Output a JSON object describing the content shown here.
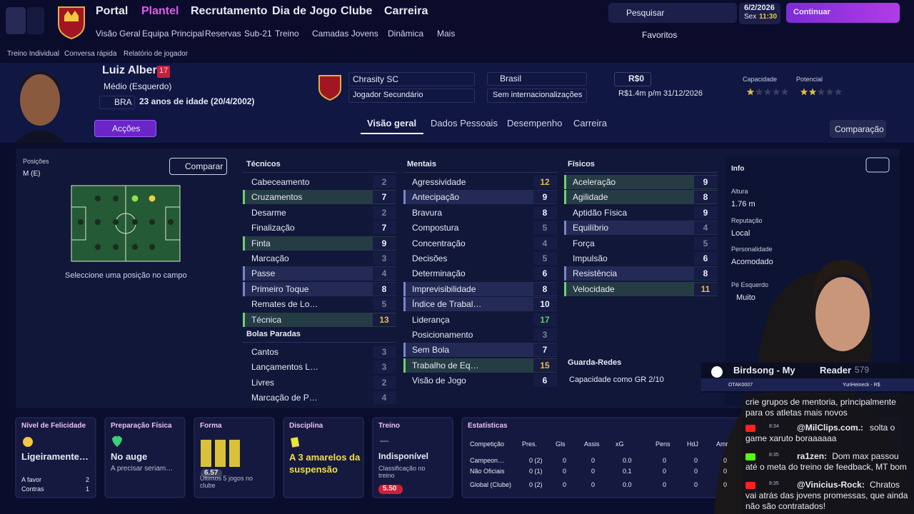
{
  "nav": {
    "menu": [
      "Portal",
      "Plantel",
      "Recrutamento",
      "Dia de Jogo",
      "Clube",
      "Carreira"
    ],
    "submenu": [
      "Visão Geral",
      "Equipa Principal",
      "Reservas",
      "Sub-21",
      "Treino",
      "Camadas Jovens",
      "Dinâmica",
      "Mais"
    ],
    "search": "Pesquisar",
    "date": "6/2/2026",
    "day": "Sex",
    "time": "11:30",
    "continue": "Continuar",
    "favorites": "Favoritos"
  },
  "breadcrumb": [
    "Treino Individual",
    "Conversa rápida",
    "Relatório de jogador"
  ],
  "player": {
    "name": "Luiz Alberto",
    "number": 17,
    "position": "Médio (Esquerdo)",
    "nation": "BRA",
    "age": "23 anos de idade (20/4/2002)",
    "club": "Chrasity SC",
    "role": "Jogador Secundário",
    "country": "Brasil",
    "caps": "Sem internacionalizações",
    "value": "R$0",
    "wage": "R$1.4m p/m 31/12/2026",
    "ability_label": "Capacidade",
    "ability": 1,
    "potential_label": "Potencial",
    "potential": 2,
    "actions": "Acções"
  },
  "tabs": [
    "Visão geral",
    "Dados Pessoais",
    "Desempenho",
    "Carreira"
  ],
  "compare_button": "Comparação",
  "positions": {
    "label": "Posições",
    "value": "M (E)",
    "compare": "Comparar",
    "hint": "Seleccione uma posição no campo"
  },
  "attributes": [
    {
      "title": "Técnicos",
      "items": [
        {
          "name": "Cabeceamento",
          "value": 2
        },
        {
          "name": "Cruzamentos",
          "value": 7,
          "highlight": "primary"
        },
        {
          "name": "Desarme",
          "value": 2
        },
        {
          "name": "Finalização",
          "value": 7
        },
        {
          "name": "Finta",
          "value": 9,
          "highlight": "primary"
        },
        {
          "name": "Marcação",
          "value": 3
        },
        {
          "name": "Passe",
          "value": 4,
          "highlight": "secondary"
        },
        {
          "name": "Primeiro Toque",
          "value": 8,
          "highlight": "secondary"
        },
        {
          "name": "Remates de Lo…",
          "value": 5
        },
        {
          "name": "Técnica",
          "value": 13,
          "highlight": "primary"
        }
      ]
    },
    {
      "title": "Mentais",
      "items": [
        {
          "name": "Agressividade",
          "value": 12
        },
        {
          "name": "Antecipação",
          "value": 9,
          "highlight": "secondary"
        },
        {
          "name": "Bravura",
          "value": 8
        },
        {
          "name": "Compostura",
          "value": 5
        },
        {
          "name": "Concentração",
          "value": 4
        },
        {
          "name": "Decisões",
          "value": 5
        },
        {
          "name": "Determinação",
          "value": 6
        },
        {
          "name": "Imprevisibilidade",
          "value": 8,
          "highlight": "secondary"
        },
        {
          "name": "Índice de Trabal…",
          "value": 10,
          "highlight": "secondary"
        },
        {
          "name": "Liderança",
          "value": 17
        },
        {
          "name": "Posicionamento",
          "value": 3
        },
        {
          "name": "Sem Bola",
          "value": 7,
          "highlight": "secondary"
        },
        {
          "name": "Trabalho de Eq…",
          "value": 15,
          "highlight": "primary"
        },
        {
          "name": "Visão de Jogo",
          "value": 6
        }
      ]
    },
    {
      "title": "Físicos",
      "items": [
        {
          "name": "Aceleração",
          "value": 9,
          "highlight": "primary"
        },
        {
          "name": "Agilidade",
          "value": 8,
          "highlight": "primary"
        },
        {
          "name": "Aptidão Física",
          "value": 9
        },
        {
          "name": "Equilíbrio",
          "value": 4,
          "highlight": "secondary"
        },
        {
          "name": "Força",
          "value": 5
        },
        {
          "name": "Impulsão",
          "value": 6
        },
        {
          "name": "Resistência",
          "value": 8,
          "highlight": "secondary"
        },
        {
          "name": "Velocidade",
          "value": 11,
          "highlight": "primary"
        }
      ]
    },
    {
      "title": "Bolas Paradas",
      "items": [
        {
          "name": "Cantos",
          "value": 3
        },
        {
          "name": "Lançamentos L…",
          "value": 3
        },
        {
          "name": "Livres",
          "value": 2
        },
        {
          "name": "Marcação de P…",
          "value": 4
        }
      ]
    }
  ],
  "goalkeeping": {
    "title": "Guarda-Redes",
    "text": "Capacidade como GR 2/10"
  },
  "info": {
    "title": "Info",
    "fields": [
      {
        "label": "Altura",
        "value": "1.76 m"
      },
      {
        "label": "Reputação",
        "value": "Local"
      },
      {
        "label": "Personalidade",
        "value": "Acomodado"
      },
      {
        "label": "Pé Esquerdo",
        "value": "Muito"
      }
    ]
  },
  "cards": {
    "happiness": {
      "title": "Nível de Felicidade",
      "value": "Ligeiramente…",
      "rows": [
        {
          "label": "A favor",
          "value": 2
        },
        {
          "label": "Contras",
          "value": 1
        }
      ]
    },
    "fitness": {
      "title": "Preparação Física",
      "value": "No auge",
      "note": "A precisar seriam…"
    },
    "form": {
      "title": "Forma",
      "rating": "6.57",
      "note": "Últimos 5 jogos no clube"
    },
    "discipline": {
      "title": "Disciplina",
      "value": "A 3 amarelos da suspensão"
    },
    "training": {
      "title": "Treino",
      "dash": "—",
      "value": "Indisponível",
      "note": "Classificação no treino",
      "rating": "5.50"
    },
    "stats": {
      "title": "Estatísticas",
      "headers": [
        "Competição",
        "Pres.",
        "Gls",
        "Assis",
        "xG",
        "Pens",
        "HdJ",
        "Amr"
      ],
      "rows": [
        [
          "Campeon…",
          "0 (2)",
          "0",
          "0",
          "0.0",
          "0",
          "0",
          "0"
        ],
        [
          "Não Oficiais",
          "0 (1)",
          "0",
          "0",
          "0.1",
          "0",
          "0",
          "0"
        ],
        [
          "Global (Clube)",
          "0 (2)",
          "0",
          "0",
          "0.0",
          "0",
          "0",
          "0"
        ]
      ]
    }
  },
  "stream": {
    "song": "Birdsong - My",
    "song_end": "Reader",
    "count": "579",
    "left_tag": "OTAK0007",
    "right_tag": "YuriHeineck - R$",
    "chat": [
      {
        "time": "",
        "user": "",
        "text": "crie grupos de mentoria, principalmente para os atletas mais novos"
      },
      {
        "time": "8:34",
        "user": "@MilClips.com.:",
        "text": "solta o game xaruto boraaaaaa"
      },
      {
        "time": "8:35",
        "user": "ra1zen:",
        "text": "Dom max passou até o meta do treino de feedback, MT bom"
      },
      {
        "time": "8:35",
        "user": "@Vinicius-Rock:",
        "text": "Chratos vai atrás das jovens promessas, que ainda não são contratados!"
      }
    ]
  }
}
